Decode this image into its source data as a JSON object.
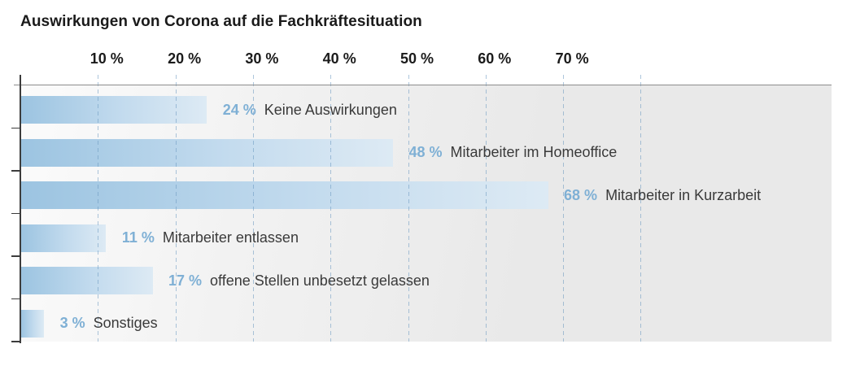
{
  "title": "Auswirkungen von Corona auf die Fachkräftesituation",
  "chart_data": {
    "type": "bar",
    "orientation": "horizontal",
    "title": "Auswirkungen von Corona auf die Fachkräftesituation",
    "categories": [
      "Keine Auswirkungen",
      "Mitarbeiter im Homeoffice",
      "Mitarbeiter in Kurzarbeit",
      "Mitarbeiter entlassen",
      "offene Stellen unbesetzt gelassen",
      "Sonstiges"
    ],
    "values": [
      24,
      48,
      68,
      11,
      17,
      3
    ],
    "value_labels": [
      "24 %",
      "48 %",
      "68 %",
      "11 %",
      "17 %",
      "3 %"
    ],
    "xlabel": "",
    "ylabel": "",
    "x_axis": {
      "range": [
        0,
        80
      ],
      "gridline_values": [
        10,
        20,
        30,
        40,
        50,
        60,
        70,
        80
      ],
      "tick_values": [
        10,
        20,
        30,
        40,
        50,
        60,
        70
      ],
      "tick_labels": [
        "10 %",
        "20 %",
        "30 %",
        "40 %",
        "50 %",
        "60 %",
        "70 %"
      ]
    },
    "grid": "dashed-vertical",
    "legend": "none",
    "colors": {
      "bar_gradient_start": "#9cc4e1",
      "bar_gradient_end": "#ddeaf4",
      "value_text": "#7fb0d5",
      "category_text": "#3a3a3a",
      "tick_text": "#1b1b1b",
      "gridline": "#6a98c0",
      "axis_line": "#3c3c3c",
      "top_axis_line": "#8d8d8d",
      "plot_background_left": "#fbfbfb",
      "plot_background_right": "#e9e9e9"
    }
  }
}
